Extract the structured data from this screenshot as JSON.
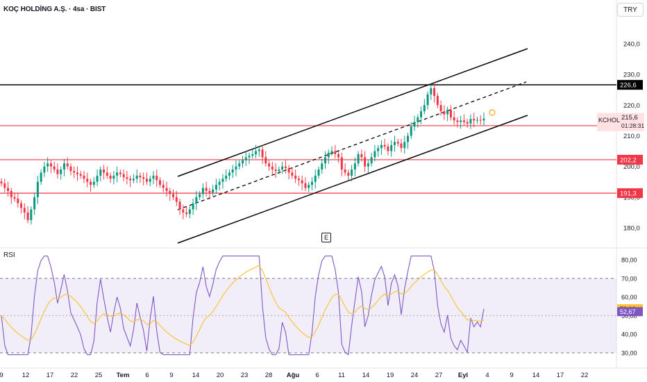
{
  "header": {
    "title": "KOÇ HOLDİNG A.Ş. · 4sa · BIST",
    "currency": "TRY"
  },
  "chart_data": [
    {
      "type": "candlestick",
      "symbol": "KCHOL",
      "interval": "4sa",
      "yticks": [
        "180,0",
        "190,0",
        "200,0",
        "210,0",
        "220,0",
        "230,0",
        "240,0"
      ],
      "ylim": [
        175,
        245
      ],
      "x_tick_labels": [
        "9",
        "12",
        "17",
        "22",
        "25",
        "Tem",
        "6",
        "9",
        "14",
        "20",
        "23",
        "28",
        "Ağu",
        "6",
        "11",
        "14",
        "19",
        "24",
        "27",
        "Eyl",
        "4",
        "9",
        "14",
        "17",
        "22"
      ],
      "last_price": "215,6",
      "countdown": "01:28:31",
      "horizontal_levels": [
        "226,6",
        "213,3",
        "202,2",
        "191,3"
      ],
      "earnings_marker": "E",
      "closes": [
        194.5,
        193,
        192,
        190,
        189.5,
        188,
        186.5,
        185,
        182.5,
        186,
        190,
        195,
        198,
        200,
        201,
        200,
        199,
        197.5,
        199,
        201,
        200,
        198.5,
        198,
        197.5,
        197,
        196,
        195,
        194,
        195,
        197,
        199,
        198,
        197,
        196,
        197,
        198,
        197.5,
        196.5,
        196,
        195.5,
        196,
        197,
        196.5,
        196,
        195,
        196,
        197,
        195.5,
        194,
        193,
        192,
        191,
        190,
        188.5,
        186,
        185,
        184.5,
        186,
        188,
        190,
        191,
        193,
        192,
        191.5,
        192.5,
        194,
        195,
        196,
        197,
        198,
        199,
        200,
        201,
        202,
        203,
        203.5,
        204,
        205,
        205.5,
        203,
        201,
        200,
        199,
        198.5,
        199,
        200,
        199.5,
        198,
        197,
        196,
        195.5,
        194.5,
        193,
        194,
        195,
        197,
        199,
        201,
        203,
        204.5,
        205,
        204,
        203,
        199,
        198,
        197,
        199,
        201,
        204,
        203,
        200,
        201,
        203,
        205,
        206,
        207,
        206.5,
        205,
        207,
        208,
        207.5,
        206,
        208,
        210,
        213,
        214.5,
        216,
        218,
        220,
        223.5,
        225.5,
        223,
        220,
        218,
        217,
        218.5,
        216,
        215,
        214.5,
        215,
        214.5,
        214,
        215.5,
        215,
        215.2,
        215,
        215.6
      ],
      "rsi": {
        "yticks": [
          "30,00",
          "40,00",
          "50,00",
          "60,00",
          "70,00",
          "80,00"
        ],
        "bands": [
          30,
          70
        ],
        "rsi_last": "52,67",
        "ma_last": "53,10"
      }
    }
  ]
}
